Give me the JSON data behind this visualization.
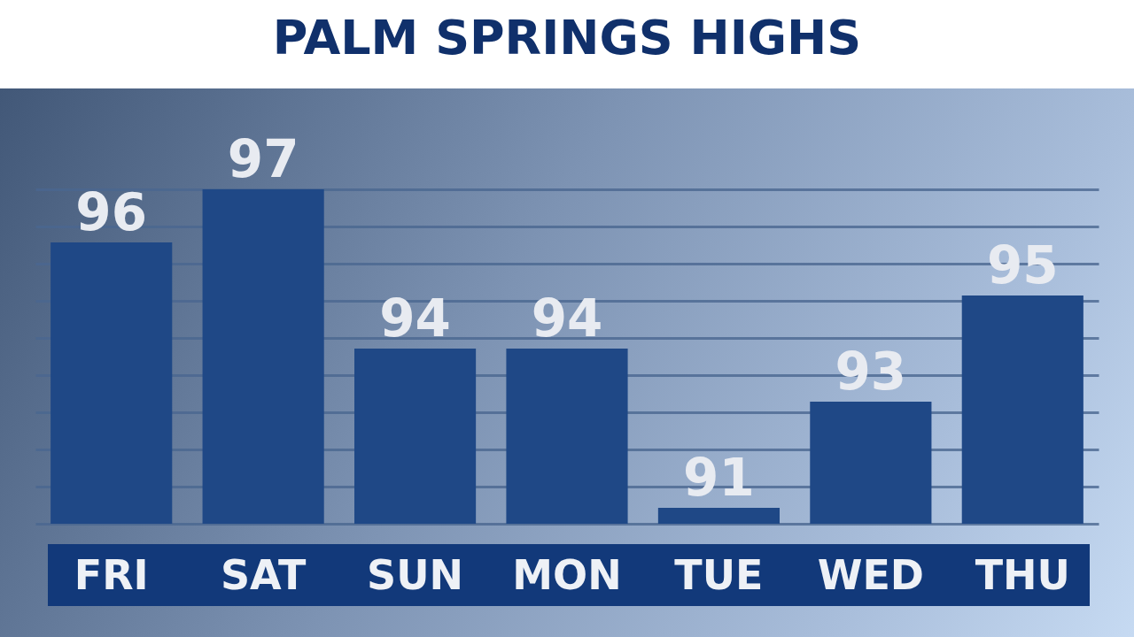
{
  "chart_data": {
    "type": "bar",
    "title": "PALM SPRINGS HIGHS",
    "categories": [
      "FRI",
      "SAT",
      "SUN",
      "MON",
      "TUE",
      "WED",
      "THU"
    ],
    "values": [
      96,
      97,
      94,
      94,
      91,
      93,
      95
    ],
    "color": "#1f4886",
    "data_labels": true,
    "ylim": [
      90.7,
      97.0
    ],
    "yticks": [
      {
        "value": 90.7,
        "label": null
      },
      {
        "value": 91.4,
        "label": null
      },
      {
        "value": 92.1,
        "label": null
      },
      {
        "value": 92.8,
        "label": null
      },
      {
        "value": 93.5,
        "label": null
      },
      {
        "value": 94.2,
        "label": null
      },
      {
        "value": 94.9,
        "label": null
      },
      {
        "value": 95.6,
        "label": null
      },
      {
        "value": 96.3,
        "label": null
      },
      {
        "value": 97.0,
        "label": null
      }
    ],
    "grid": "y",
    "tick_labels": "x"
  }
}
